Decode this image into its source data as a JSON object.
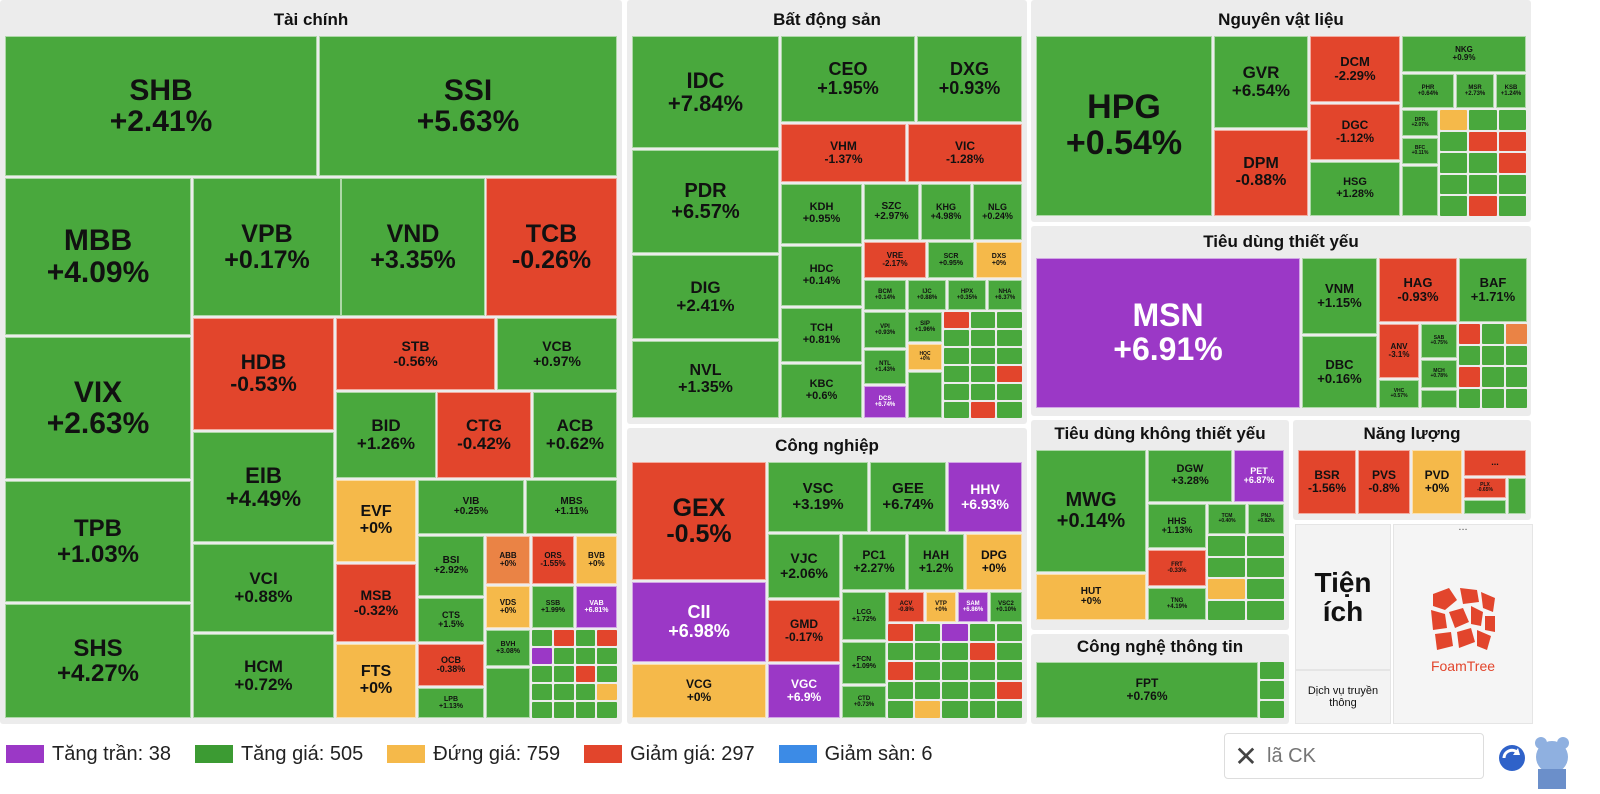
{
  "sections": {
    "finance": "Tài chính",
    "real_estate": "Bất động sản",
    "materials": "Nguyên vật liệu",
    "staples": "Tiêu dùng thiết yếu",
    "industrial": "Công nghiệp",
    "discretionary": "Tiêu dùng không thiết yếu",
    "energy": "Năng lượng",
    "it": "Công nghệ thông tin",
    "utilities": "Tiện ích",
    "media": "Dịch vụ truyền thông",
    "more": "..."
  },
  "finance": [
    {
      "t": "SHB",
      "p": "+2.41%"
    },
    {
      "t": "SSI",
      "p": "+5.63%"
    },
    {
      "t": "MBB",
      "p": "+4.09%"
    },
    {
      "t": "VPB",
      "p": "+0.17%"
    },
    {
      "t": "VND",
      "p": "+3.35%"
    },
    {
      "t": "TCB",
      "p": "-0.26%"
    },
    {
      "t": "VIX",
      "p": "+2.63%"
    },
    {
      "t": "HDB",
      "p": "-0.53%"
    },
    {
      "t": "STB",
      "p": "-0.56%"
    },
    {
      "t": "VCB",
      "p": "+0.97%"
    },
    {
      "t": "BID",
      "p": "+1.26%"
    },
    {
      "t": "CTG",
      "p": "-0.42%"
    },
    {
      "t": "ACB",
      "p": "+0.62%"
    },
    {
      "t": "EIB",
      "p": "+4.49%"
    },
    {
      "t": "TPB",
      "p": "+1.03%"
    },
    {
      "t": "EVF",
      "p": "+0%"
    },
    {
      "t": "VIB",
      "p": "+0.25%"
    },
    {
      "t": "MBS",
      "p": "+1.11%"
    },
    {
      "t": "VCI",
      "p": "+0.88%"
    },
    {
      "t": "BSI",
      "p": "+2.92%"
    },
    {
      "t": "ABB",
      "p": "+0%"
    },
    {
      "t": "ORS",
      "p": "-1.55%"
    },
    {
      "t": "BVB",
      "p": "+0%"
    },
    {
      "t": "MSB",
      "p": "-0.32%"
    },
    {
      "t": "CTS",
      "p": "+1.5%"
    },
    {
      "t": "VDS",
      "p": "+0%"
    },
    {
      "t": "SSB",
      "p": "+1.99%"
    },
    {
      "t": "VAB",
      "p": "+6.81%"
    },
    {
      "t": "SHS",
      "p": "+4.27%"
    },
    {
      "t": "HCM",
      "p": "+0.72%"
    },
    {
      "t": "FTS",
      "p": "+0%"
    },
    {
      "t": "OCB",
      "p": "-0.38%"
    },
    {
      "t": "BVH",
      "p": "+3.08%"
    },
    {
      "t": "LPB",
      "p": "+1.13%"
    }
  ],
  "real_estate": [
    {
      "t": "IDC",
      "p": "+7.84%"
    },
    {
      "t": "CEO",
      "p": "+1.95%"
    },
    {
      "t": "DXG",
      "p": "+0.93%"
    },
    {
      "t": "VHM",
      "p": "-1.37%"
    },
    {
      "t": "VIC",
      "p": "-1.28%"
    },
    {
      "t": "PDR",
      "p": "+6.57%"
    },
    {
      "t": "KDH",
      "p": "+0.95%"
    },
    {
      "t": "SZC",
      "p": "+2.97%"
    },
    {
      "t": "KHG",
      "p": "+4.98%"
    },
    {
      "t": "NLG",
      "p": "+0.24%"
    },
    {
      "t": "HDC",
      "p": "+0.14%"
    },
    {
      "t": "VRE",
      "p": "-2.17%"
    },
    {
      "t": "SCR",
      "p": "+0.95%"
    },
    {
      "t": "DXS",
      "p": "+0%"
    },
    {
      "t": "DIG",
      "p": "+2.41%"
    },
    {
      "t": "BCM",
      "p": "+0.14%"
    },
    {
      "t": "IJC",
      "p": "+0.88%"
    },
    {
      "t": "HPX",
      "p": "+0.35%"
    },
    {
      "t": "NHA",
      "p": "+6.37%"
    },
    {
      "t": "TCH",
      "p": "+0.81%"
    },
    {
      "t": "VPI",
      "p": "+0.93%"
    },
    {
      "t": "SIP",
      "p": "+1.96%"
    },
    {
      "t": "NVL",
      "p": "+1.35%"
    },
    {
      "t": "NTL",
      "p": "+1.43%"
    },
    {
      "t": "HQC",
      "p": "+0%"
    },
    {
      "t": "KBC",
      "p": "+0.6%"
    },
    {
      "t": "DCS",
      "p": "+6.74%"
    }
  ],
  "materials": [
    {
      "t": "HPG",
      "p": "+0.54%"
    },
    {
      "t": "GVR",
      "p": "+6.54%"
    },
    {
      "t": "DCM",
      "p": "-2.29%"
    },
    {
      "t": "NKG",
      "p": "+0.9%"
    },
    {
      "t": "PHR",
      "p": "+0.64%"
    },
    {
      "t": "MSR",
      "p": "+2.73%"
    },
    {
      "t": "KSB",
      "p": "+1.24%"
    },
    {
      "t": "DGC",
      "p": "-1.12%"
    },
    {
      "t": "DPR",
      "p": "+2.07%"
    },
    {
      "t": "BFC",
      "p": "+0.11%"
    },
    {
      "t": "DPM",
      "p": "-0.88%"
    },
    {
      "t": "HSG",
      "p": "+1.28%"
    }
  ],
  "staples": [
    {
      "t": "MSN",
      "p": "+6.91%"
    },
    {
      "t": "VNM",
      "p": "+1.15%"
    },
    {
      "t": "HAG",
      "p": "-0.93%"
    },
    {
      "t": "BAF",
      "p": "+1.71%"
    },
    {
      "t": "ANV",
      "p": "-3.1%"
    },
    {
      "t": "SAB",
      "p": "+0.75%"
    },
    {
      "t": "DBC",
      "p": "+0.16%"
    },
    {
      "t": "MCH",
      "p": "+0.78%"
    },
    {
      "t": "VHC",
      "p": "+0.57%"
    }
  ],
  "industrial": [
    {
      "t": "GEX",
      "p": "-0.5%"
    },
    {
      "t": "VSC",
      "p": "+3.19%"
    },
    {
      "t": "GEE",
      "p": "+6.74%"
    },
    {
      "t": "HHV",
      "p": "+6.93%"
    },
    {
      "t": "VJC",
      "p": "+2.06%"
    },
    {
      "t": "PC1",
      "p": "+2.27%"
    },
    {
      "t": "HAH",
      "p": "+1.2%"
    },
    {
      "t": "DPG",
      "p": "+0%"
    },
    {
      "t": "CII",
      "p": "+6.98%"
    },
    {
      "t": "GMD",
      "p": "-0.17%"
    },
    {
      "t": "LCG",
      "p": "+1.72%"
    },
    {
      "t": "ACV",
      "p": "-0.8%"
    },
    {
      "t": "VTP",
      "p": "+0%"
    },
    {
      "t": "SAM",
      "p": "+6.86%"
    },
    {
      "t": "VSC2",
      "p": "+0.10%"
    },
    {
      "t": "FCN",
      "p": "+1.09%"
    },
    {
      "t": "VCG",
      "p": "+0%"
    },
    {
      "t": "VGC",
      "p": "+6.9%"
    },
    {
      "t": "CTD",
      "p": "+0.73%"
    }
  ],
  "discretionary": [
    {
      "t": "MWG",
      "p": "+0.14%"
    },
    {
      "t": "DGW",
      "p": "+3.28%"
    },
    {
      "t": "PET",
      "p": "+6.87%"
    },
    {
      "t": "HHS",
      "p": "+1.13%"
    },
    {
      "t": "TCM",
      "p": "+0.40%"
    },
    {
      "t": "PNJ",
      "p": "+0.82%"
    },
    {
      "t": "FRT",
      "p": "-0.33%"
    },
    {
      "t": "HUT",
      "p": "+0%"
    },
    {
      "t": "TNG",
      "p": "+4.19%"
    }
  ],
  "energy": [
    {
      "t": "BSR",
      "p": "-1.56%"
    },
    {
      "t": "PVS",
      "p": "-0.8%"
    },
    {
      "t": "PVD",
      "p": "+0%"
    },
    {
      "t": "PLX",
      "p": "-0.65%"
    }
  ],
  "it": [
    {
      "t": "FPT",
      "p": "+0.76%"
    }
  ],
  "legend": [
    {
      "label": "Tăng trần: 38",
      "color": "#9b38c6"
    },
    {
      "label": "Tăng giá: 505",
      "color": "#3c9b33"
    },
    {
      "label": "Đứng giá: 759",
      "color": "#f5b94a"
    },
    {
      "label": "Giảm giá: 297",
      "color": "#e2452c"
    },
    {
      "label": "Giảm sàn: 6",
      "color": "#3c8be6"
    }
  ],
  "search": {
    "placeholder": "lã CK",
    "close": "✕"
  },
  "foamtree": {
    "label": "FoamTree"
  }
}
